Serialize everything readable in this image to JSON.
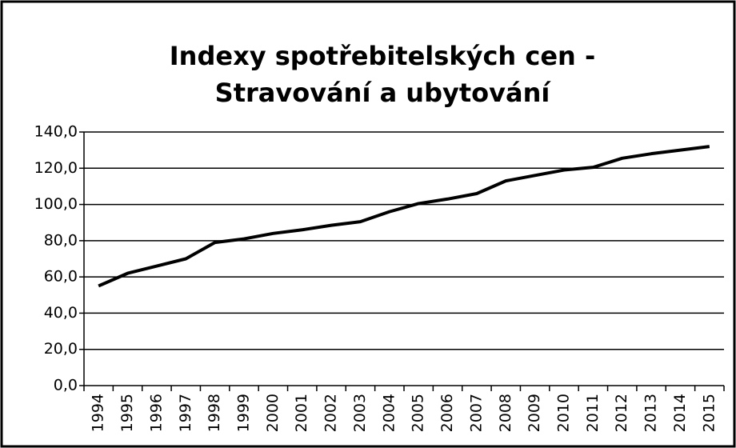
{
  "chart_data": {
    "type": "line",
    "title": [
      "Indexy spotřebitelských cen -",
      "Stravování a ubytování"
    ],
    "categories": [
      "1994",
      "1995",
      "1996",
      "1997",
      "1998",
      "1999",
      "2000",
      "2001",
      "2002",
      "2003",
      "2004",
      "2005",
      "2006",
      "2007",
      "2008",
      "2009",
      "2010",
      "2011",
      "2012",
      "2013",
      "2014",
      "2015"
    ],
    "series": [
      {
        "color": "#000000",
        "values": [
          55,
          62,
          66,
          70,
          79,
          81,
          84,
          86,
          88.5,
          90.5,
          96,
          100.5,
          103,
          106,
          113,
          116,
          119,
          120.5,
          125.5,
          128,
          130,
          132
        ]
      }
    ],
    "ylim": [
      0,
      140
    ],
    "yticks": [
      {
        "value": 0,
        "label": "0,0"
      },
      {
        "value": 20,
        "label": "20,0"
      },
      {
        "value": 40,
        "label": "40,0"
      },
      {
        "value": 60,
        "label": "60,0"
      },
      {
        "value": 80,
        "label": "80,0"
      },
      {
        "value": 100,
        "label": "100,0"
      },
      {
        "value": 120,
        "label": "120,0"
      },
      {
        "value": 140,
        "label": "140,0"
      }
    ],
    "grid": true
  }
}
